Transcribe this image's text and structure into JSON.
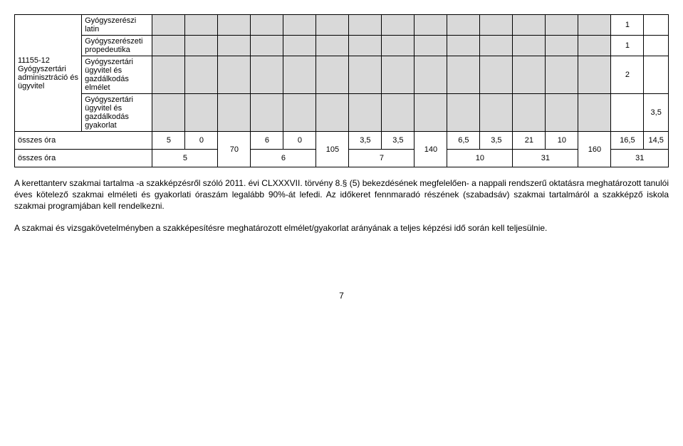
{
  "table": {
    "group_label": "11155-12 Gyógyszertári adminisztráció és ügyvitel",
    "rows": [
      {
        "name": "Gyógyszerészi latin",
        "right_ext": "1"
      },
      {
        "name": "Gyógyszerészeti propedeutika",
        "right_ext": "1"
      },
      {
        "name": "Gyógyszertári ügyvitel és gazdálkodás elmélet",
        "right_ext": "2"
      },
      {
        "name": "Gyógyszertári ügyvitel és gazdálkodás gyakorlat",
        "right_ext": "3,5"
      }
    ],
    "sum_row1": {
      "label": "összes óra",
      "c": [
        "5",
        "0",
        "",
        "6",
        "0",
        "",
        "3,5",
        "3,5",
        "",
        "6,5",
        "3,5",
        "21",
        "10",
        "",
        "16,5",
        "14,5"
      ]
    },
    "sum_row2": {
      "label": "összes óra",
      "c": [
        "5",
        "",
        "",
        "6",
        "",
        "",
        "7",
        "",
        "",
        "10",
        "",
        "31",
        "",
        "",
        "31",
        ""
      ]
    },
    "merged": {
      "m1": "70",
      "m2": "105",
      "m3": "140",
      "m4": "160"
    },
    "colors": {
      "gray": "#d9d9d9",
      "border": "#000000"
    }
  },
  "paragraphs": {
    "p1": "A kerettanterv szakmai tartalma -a szakképzésről szóló 2011. évi CLXXXVII. törvény 8.§ (5) bekezdésének megfelelően- a nappali rendszerű oktatásra meghatározott tanulói éves kötelező szakmai elméleti és gyakorlati óraszám legalább 90%-át lefedi. Az időkeret fennmaradó részének (szabadsáv) szakmai tartalmáról a szakképző iskola szakmai programjában kell rendelkezni.",
    "p2": "A szakmai és vizsgakövetelményben a szakképesítésre meghatározott elmélet/gyakorlat arányának a teljes képzési idő során kell teljesülnie."
  },
  "page_number": "7"
}
